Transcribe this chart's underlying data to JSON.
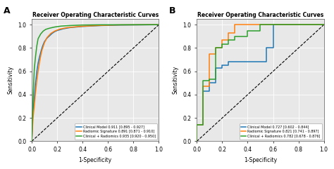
{
  "title": "Receiver Operating Characteristic Curves",
  "xlabel": "1-Specificity",
  "ylabel": "Sensitivity",
  "color_blue": "#1f77b4",
  "color_orange": "#ff7f0e",
  "color_green": "#2ca02c",
  "bg_color": "#e8e8e8",
  "panel_a": {
    "legend": [
      "Clinical Model 0.911 [0.895 - 0.927]",
      "Radiomic Signature 0.891 [0.871 - 0.910]",
      "Clinical + Radiomics 0.935 [0.920 - 0.950]"
    ],
    "blue_x": [
      0.0,
      0.005,
      0.01,
      0.02,
      0.03,
      0.04,
      0.05,
      0.06,
      0.07,
      0.08,
      0.09,
      0.1,
      0.12,
      0.14,
      0.16,
      0.18,
      0.2,
      0.25,
      0.3,
      0.4,
      0.55,
      0.7,
      1.0
    ],
    "blue_y": [
      0.0,
      0.15,
      0.26,
      0.38,
      0.5,
      0.6,
      0.67,
      0.72,
      0.76,
      0.8,
      0.83,
      0.855,
      0.885,
      0.905,
      0.925,
      0.94,
      0.95,
      0.965,
      0.975,
      0.985,
      0.993,
      0.997,
      1.0
    ],
    "orange_x": [
      0.0,
      0.005,
      0.01,
      0.02,
      0.03,
      0.04,
      0.05,
      0.06,
      0.07,
      0.08,
      0.1,
      0.12,
      0.15,
      0.18,
      0.22,
      0.28,
      0.38,
      0.52,
      0.68,
      1.0
    ],
    "orange_y": [
      0.0,
      0.1,
      0.2,
      0.3,
      0.42,
      0.52,
      0.6,
      0.67,
      0.73,
      0.78,
      0.845,
      0.89,
      0.925,
      0.945,
      0.962,
      0.975,
      0.985,
      0.993,
      0.998,
      1.0
    ],
    "green_x": [
      0.0,
      0.005,
      0.01,
      0.015,
      0.02,
      0.03,
      0.04,
      0.05,
      0.07,
      0.09,
      0.11,
      0.14,
      0.18,
      0.23,
      0.3,
      0.4,
      0.55,
      1.0
    ],
    "green_y": [
      0.0,
      0.2,
      0.36,
      0.5,
      0.62,
      0.73,
      0.82,
      0.88,
      0.92,
      0.945,
      0.96,
      0.97,
      0.98,
      0.988,
      0.993,
      0.997,
      0.999,
      1.0
    ]
  },
  "panel_b": {
    "legend": [
      "Clinical Model 0.727 [0.602 - 0.844]",
      "Radiomic Signature 0.821 [0.741 - 0.897]",
      "Clinical + Radiomics 0.782 [0.678 - 0.876]"
    ],
    "blue_x": [
      0.0,
      0.0,
      0.05,
      0.05,
      0.05,
      0.1,
      0.1,
      0.15,
      0.15,
      0.2,
      0.2,
      0.25,
      0.25,
      0.55,
      0.55,
      0.6,
      0.6,
      1.0,
      1.0
    ],
    "blue_y": [
      0.0,
      0.14,
      0.14,
      0.43,
      0.43,
      0.43,
      0.5,
      0.5,
      0.63,
      0.63,
      0.65,
      0.65,
      0.68,
      0.68,
      0.8,
      0.8,
      1.0,
      1.0,
      1.0
    ],
    "orange_x": [
      0.0,
      0.0,
      0.05,
      0.05,
      0.1,
      0.1,
      0.15,
      0.15,
      0.2,
      0.2,
      0.25,
      0.25,
      0.3,
      0.3,
      0.35,
      0.35,
      0.4,
      0.4,
      1.0
    ],
    "orange_y": [
      0.0,
      0.14,
      0.14,
      0.47,
      0.47,
      0.75,
      0.75,
      0.8,
      0.8,
      0.87,
      0.87,
      0.93,
      0.93,
      1.0,
      1.0,
      1.0,
      1.0,
      1.0,
      1.0
    ],
    "green_x": [
      0.0,
      0.0,
      0.05,
      0.05,
      0.1,
      0.1,
      0.15,
      0.15,
      0.2,
      0.2,
      0.25,
      0.25,
      0.3,
      0.3,
      0.4,
      0.4,
      0.5,
      0.5,
      1.0
    ],
    "green_y": [
      0.0,
      0.14,
      0.14,
      0.52,
      0.52,
      0.53,
      0.53,
      0.8,
      0.8,
      0.83,
      0.83,
      0.87,
      0.87,
      0.9,
      0.9,
      0.95,
      0.95,
      1.0,
      1.0
    ]
  }
}
